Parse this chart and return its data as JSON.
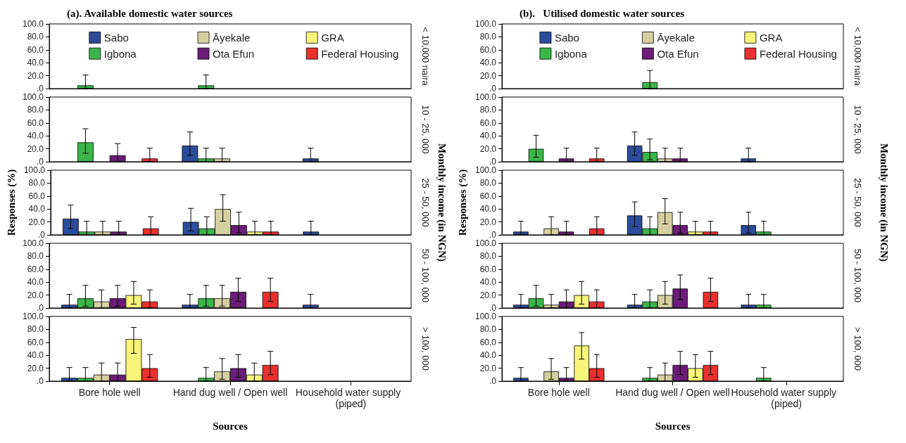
{
  "chart_data": [
    {
      "type": "bar",
      "title": "(a). Available domestic water sources",
      "legend": "top",
      "tick_labels": "y",
      "y2label": "< 10,000 naira",
      "categories": [
        "Bore hole well",
        "Hand dug well / Open well",
        "Household water supply  (piped)"
      ],
      "ylim": [
        0,
        100
      ],
      "yticks": [
        {
          "value": 0,
          "label": ".0"
        },
        {
          "value": 20,
          "label": "20.0"
        },
        {
          "value": 40,
          "label": "40.0"
        },
        {
          "value": 60,
          "label": "60.0"
        },
        {
          "value": 80,
          "label": "80.0"
        },
        {
          "value": 100,
          "label": "100.0"
        }
      ],
      "series": [
        {
          "name": "Sabo",
          "color": "#2b4c9b",
          "values": [
            null,
            null,
            null
          ],
          "errors": [
            null,
            null,
            null
          ]
        },
        {
          "name": "Igbona",
          "color": "#3bb54a",
          "values": [
            5,
            5,
            null
          ],
          "errors": [
            [
              0,
              21
            ],
            [
              0,
              21
            ],
            null
          ]
        },
        {
          "name": "Āyekale",
          "color": "#d6cfa0",
          "values": [
            null,
            null,
            null
          ],
          "errors": [
            null,
            null,
            null
          ]
        },
        {
          "name": "Ota Efun",
          "color": "#6b1d77",
          "values": [
            null,
            null,
            null
          ],
          "errors": [
            null,
            null,
            null
          ]
        },
        {
          "name": "GRA",
          "color": "#f8f47a",
          "values": [
            null,
            null,
            null
          ],
          "errors": [
            null,
            null,
            null
          ]
        },
        {
          "name": "Federal Housing",
          "color": "#e8302e",
          "values": [
            null,
            null,
            null
          ],
          "errors": [
            null,
            null,
            null
          ]
        }
      ]
    },
    {
      "type": "bar",
      "tick_labels": "y",
      "y2label": "10 - 25, 000",
      "categories": [
        "Bore hole well",
        "Hand dug well / Open well",
        "Household water supply  (piped)"
      ],
      "ylim": [
        0,
        100
      ],
      "yticks": [
        {
          "value": 0,
          "label": ".0"
        },
        {
          "value": 20,
          "label": "20.0"
        },
        {
          "value": 40,
          "label": "40.0"
        },
        {
          "value": 60,
          "label": "60.0"
        },
        {
          "value": 80,
          "label": "80.0"
        },
        {
          "value": 100,
          "label": "100.0"
        }
      ],
      "series": [
        {
          "color": "#2b4c9b",
          "values": [
            null,
            25,
            5
          ],
          "errors": [
            null,
            [
              10,
              46
            ],
            [
              0,
              21
            ]
          ]
        },
        {
          "color": "#3bb54a",
          "values": [
            30,
            5,
            null
          ],
          "errors": [
            [
              13,
              51
            ],
            [
              0,
              21
            ],
            null
          ]
        },
        {
          "color": "#d6cfa0",
          "values": [
            null,
            5,
            null
          ],
          "errors": [
            null,
            [
              0,
              21
            ],
            null
          ]
        },
        {
          "color": "#6b1d77",
          "values": [
            10,
            null,
            null
          ],
          "errors": [
            [
              0,
              28
            ],
            null,
            null
          ]
        },
        {
          "color": "#f8f47a",
          "values": [
            null,
            null,
            null
          ],
          "errors": [
            null,
            null,
            null
          ]
        },
        {
          "color": "#e8302e",
          "values": [
            5,
            null,
            null
          ],
          "errors": [
            [
              0,
              21
            ],
            null,
            null
          ]
        }
      ]
    },
    {
      "type": "bar",
      "tick_labels": "y",
      "ylabel": "Responses (%)",
      "annotations": [
        "Monthly income (in NGN)"
      ],
      "y2label": "25 - 50, 000",
      "categories": [
        "Bore hole well",
        "Hand dug well / Open well",
        "Household water supply  (piped)"
      ],
      "ylim": [
        0,
        100
      ],
      "yticks": [
        {
          "value": 0,
          "label": ".0"
        },
        {
          "value": 20,
          "label": "20.0"
        },
        {
          "value": 40,
          "label": "40.0"
        },
        {
          "value": 60,
          "label": "60.0"
        },
        {
          "value": 80,
          "label": "80.0"
        },
        {
          "value": 100,
          "label": "100.0"
        }
      ],
      "series": [
        {
          "color": "#2b4c9b",
          "values": [
            25,
            20,
            5
          ],
          "errors": [
            [
              10,
              46
            ],
            [
              6,
              41
            ],
            [
              0,
              21
            ]
          ]
        },
        {
          "color": "#3bb54a",
          "values": [
            5,
            10,
            null
          ],
          "errors": [
            [
              0,
              21
            ],
            [
              0,
              28
            ],
            null
          ]
        },
        {
          "color": "#d6cfa0",
          "values": [
            5,
            40,
            null
          ],
          "errors": [
            [
              0,
              21
            ],
            [
              21,
              62
            ],
            null
          ]
        },
        {
          "color": "#6b1d77",
          "values": [
            5,
            15,
            null
          ],
          "errors": [
            [
              0,
              21
            ],
            [
              3,
              35
            ],
            null
          ]
        },
        {
          "color": "#f8f47a",
          "values": [
            null,
            5,
            null
          ],
          "errors": [
            null,
            [
              0,
              21
            ],
            null
          ]
        },
        {
          "color": "#e8302e",
          "values": [
            10,
            5,
            null
          ],
          "errors": [
            [
              0,
              28
            ],
            [
              0,
              21
            ],
            null
          ]
        }
      ]
    },
    {
      "type": "bar",
      "tick_labels": "y",
      "y2label": "50 - 100, 000",
      "categories": [
        "Bore hole well",
        "Hand dug well / Open well",
        "Household water supply  (piped)"
      ],
      "ylim": [
        0,
        100
      ],
      "yticks": [
        {
          "value": 0,
          "label": ".0"
        },
        {
          "value": 20,
          "label": "20.0"
        },
        {
          "value": 40,
          "label": "40.0"
        },
        {
          "value": 60,
          "label": "60.0"
        },
        {
          "value": 80,
          "label": "80.0"
        },
        {
          "value": 100,
          "label": "100.0"
        }
      ],
      "series": [
        {
          "color": "#2b4c9b",
          "values": [
            5,
            5,
            5
          ],
          "errors": [
            [
              0,
              21
            ],
            [
              0,
              21
            ],
            [
              0,
              21
            ]
          ]
        },
        {
          "color": "#3bb54a",
          "values": [
            15,
            15,
            null
          ],
          "errors": [
            [
              3,
              35
            ],
            [
              3,
              35
            ],
            null
          ]
        },
        {
          "color": "#d6cfa0",
          "values": [
            10,
            15,
            null
          ],
          "errors": [
            [
              0,
              28
            ],
            [
              3,
              35
            ],
            null
          ]
        },
        {
          "color": "#6b1d77",
          "values": [
            15,
            25,
            null
          ],
          "errors": [
            [
              3,
              35
            ],
            [
              10,
              46
            ],
            null
          ]
        },
        {
          "color": "#f8f47a",
          "values": [
            20,
            null,
            null
          ],
          "errors": [
            [
              6,
              41
            ],
            null,
            null
          ]
        },
        {
          "color": "#e8302e",
          "values": [
            10,
            25,
            null
          ],
          "errors": [
            [
              0,
              28
            ],
            [
              10,
              46
            ],
            null
          ]
        }
      ]
    },
    {
      "type": "bar",
      "xlabel": "Sources",
      "y2label": "> 100, 000",
      "categories": [
        "Bore hole well",
        "Hand dug well / Open well",
        "Household water supply  (piped)"
      ],
      "ylim": [
        0,
        100
      ],
      "yticks": [
        {
          "value": 0,
          "label": ".0"
        },
        {
          "value": 20,
          "label": "20.0"
        },
        {
          "value": 40,
          "label": "40.0"
        },
        {
          "value": 60,
          "label": "60.0"
        },
        {
          "value": 80,
          "label": "80.0"
        },
        {
          "value": 100,
          "label": "100.0"
        }
      ],
      "series": [
        {
          "color": "#2b4c9b",
          "values": [
            5,
            null,
            null
          ],
          "errors": [
            [
              0,
              21
            ],
            null,
            null
          ]
        },
        {
          "color": "#3bb54a",
          "values": [
            5,
            5,
            null
          ],
          "errors": [
            [
              0,
              21
            ],
            [
              0,
              21
            ],
            null
          ]
        },
        {
          "color": "#d6cfa0",
          "values": [
            10,
            15,
            null
          ],
          "errors": [
            [
              0,
              28
            ],
            [
              3,
              35
            ],
            null
          ]
        },
        {
          "color": "#6b1d77",
          "values": [
            10,
            20,
            null
          ],
          "errors": [
            [
              0,
              28
            ],
            [
              6,
              41
            ],
            null
          ]
        },
        {
          "color": "#f8f47a",
          "values": [
            65,
            10,
            null
          ],
          "errors": [
            [
              43,
              83
            ],
            [
              0,
              28
            ],
            null
          ]
        },
        {
          "color": "#e8302e",
          "values": [
            20,
            25,
            null
          ],
          "errors": [
            [
              6,
              41
            ],
            [
              10,
              46
            ],
            null
          ]
        }
      ]
    },
    {
      "type": "bar",
      "title": "(b).   Utilised domestic water sources",
      "legend": "top",
      "tick_labels": "y",
      "y2label": "< 10,000 naira",
      "categories": [
        "Bore hole well",
        "Hand dug well / Open well",
        "Household water supply  (piped)"
      ],
      "ylim": [
        0,
        100
      ],
      "yticks": [
        {
          "value": 0,
          "label": ".0"
        },
        {
          "value": 20,
          "label": "20.0"
        },
        {
          "value": 40,
          "label": "40.0"
        },
        {
          "value": 60,
          "label": "60.0"
        },
        {
          "value": 80,
          "label": "80.0"
        },
        {
          "value": 100,
          "label": "100.0"
        }
      ],
      "series": [
        {
          "name": "Sabo",
          "color": "#2b4c9b",
          "values": [
            null,
            null,
            null
          ],
          "errors": [
            null,
            null,
            null
          ]
        },
        {
          "name": "Igbona",
          "color": "#3bb54a",
          "values": [
            null,
            10,
            null
          ],
          "errors": [
            null,
            [
              0,
              28
            ],
            null
          ]
        },
        {
          "name": "Āyekale",
          "color": "#d6cfa0",
          "values": [
            null,
            null,
            null
          ],
          "errors": [
            null,
            null,
            null
          ]
        },
        {
          "name": "Ota Efun",
          "color": "#6b1d77",
          "values": [
            null,
            null,
            null
          ],
          "errors": [
            null,
            null,
            null
          ]
        },
        {
          "name": "GRA",
          "color": "#f8f47a",
          "values": [
            null,
            null,
            null
          ],
          "errors": [
            null,
            null,
            null
          ]
        },
        {
          "name": "Federal Housing",
          "color": "#e8302e",
          "values": [
            null,
            null,
            null
          ],
          "errors": [
            null,
            null,
            null
          ]
        }
      ]
    },
    {
      "type": "bar",
      "tick_labels": "y",
      "y2label": "10 - 25, 000",
      "categories": [
        "Bore hole well",
        "Hand dug well / Open well",
        "Household water supply  (piped)"
      ],
      "ylim": [
        0,
        100
      ],
      "yticks": [
        {
          "value": 0,
          "label": ".0"
        },
        {
          "value": 20,
          "label": "20.0"
        },
        {
          "value": 40,
          "label": "40.0"
        },
        {
          "value": 60,
          "label": "60.0"
        },
        {
          "value": 80,
          "label": "80.0"
        },
        {
          "value": 100,
          "label": "100.0"
        }
      ],
      "series": [
        {
          "color": "#2b4c9b",
          "values": [
            null,
            25,
            5
          ],
          "errors": [
            null,
            [
              10,
              46
            ],
            [
              0,
              21
            ]
          ]
        },
        {
          "color": "#3bb54a",
          "values": [
            20,
            15,
            null
          ],
          "errors": [
            [
              7,
              41
            ],
            [
              3,
              35
            ],
            null
          ]
        },
        {
          "color": "#d6cfa0",
          "values": [
            null,
            5,
            null
          ],
          "errors": [
            null,
            [
              0,
              21
            ],
            null
          ]
        },
        {
          "color": "#6b1d77",
          "values": [
            5,
            5,
            null
          ],
          "errors": [
            [
              0,
              21
            ],
            [
              0,
              21
            ],
            null
          ]
        },
        {
          "color": "#f8f47a",
          "values": [
            null,
            null,
            null
          ],
          "errors": [
            null,
            null,
            null
          ]
        },
        {
          "color": "#e8302e",
          "values": [
            5,
            null,
            null
          ],
          "errors": [
            [
              0,
              21
            ],
            null,
            null
          ]
        }
      ]
    },
    {
      "type": "bar",
      "tick_labels": "y",
      "ylabel": "Responses (%)",
      "annotations": [
        "Monthly income (in NGN)"
      ],
      "y2label": "25 - 50, 000",
      "categories": [
        "Bore hole well",
        "Hand dug well / Open well",
        "Household water supply  (piped)"
      ],
      "ylim": [
        0,
        100
      ],
      "yticks": [
        {
          "value": 0,
          "label": ".0"
        },
        {
          "value": 20,
          "label": "20.0"
        },
        {
          "value": 40,
          "label": "40.0"
        },
        {
          "value": 60,
          "label": "60.0"
        },
        {
          "value": 80,
          "label": "80.0"
        },
        {
          "value": 100,
          "label": "100.0"
        }
      ],
      "series": [
        {
          "color": "#2b4c9b",
          "values": [
            5,
            30,
            15
          ],
          "errors": [
            [
              0,
              21
            ],
            [
              13,
              51
            ],
            [
              3,
              35
            ]
          ]
        },
        {
          "color": "#3bb54a",
          "values": [
            null,
            10,
            5
          ],
          "errors": [
            null,
            [
              0,
              28
            ],
            [
              0,
              21
            ]
          ]
        },
        {
          "color": "#d6cfa0",
          "values": [
            10,
            35,
            null
          ],
          "errors": [
            [
              0,
              28
            ],
            [
              17,
              56
            ],
            null
          ]
        },
        {
          "color": "#6b1d77",
          "values": [
            5,
            15,
            null
          ],
          "errors": [
            [
              0,
              21
            ],
            [
              3,
              35
            ],
            null
          ]
        },
        {
          "color": "#f8f47a",
          "values": [
            null,
            5,
            null
          ],
          "errors": [
            null,
            [
              0,
              21
            ],
            null
          ]
        },
        {
          "color": "#e8302e",
          "values": [
            10,
            5,
            null
          ],
          "errors": [
            [
              0,
              28
            ],
            [
              0,
              21
            ],
            null
          ]
        }
      ]
    },
    {
      "type": "bar",
      "tick_labels": "y",
      "y2label": "50 - 100, 000",
      "categories": [
        "Bore hole well",
        "Hand dug well / Open well",
        "Household water supply  (piped)"
      ],
      "ylim": [
        0,
        100
      ],
      "yticks": [
        {
          "value": 0,
          "label": ".0"
        },
        {
          "value": 20,
          "label": "20.0"
        },
        {
          "value": 40,
          "label": "40.0"
        },
        {
          "value": 60,
          "label": "60.0"
        },
        {
          "value": 80,
          "label": "80.0"
        },
        {
          "value": 100,
          "label": "100.0"
        }
      ],
      "series": [
        {
          "color": "#2b4c9b",
          "values": [
            5,
            5,
            5
          ],
          "errors": [
            [
              0,
              21
            ],
            [
              0,
              21
            ],
            [
              0,
              21
            ]
          ]
        },
        {
          "color": "#3bb54a",
          "values": [
            15,
            10,
            5
          ],
          "errors": [
            [
              3,
              35
            ],
            [
              0,
              28
            ],
            [
              0,
              21
            ]
          ]
        },
        {
          "color": "#d6cfa0",
          "values": [
            5,
            20,
            null
          ],
          "errors": [
            [
              0,
              21
            ],
            [
              6,
              41
            ],
            null
          ]
        },
        {
          "color": "#6b1d77",
          "values": [
            10,
            30,
            null
          ],
          "errors": [
            [
              0,
              28
            ],
            [
              13,
              51
            ],
            null
          ]
        },
        {
          "color": "#f8f47a",
          "values": [
            20,
            null,
            null
          ],
          "errors": [
            [
              6,
              41
            ],
            null,
            null
          ]
        },
        {
          "color": "#e8302e",
          "values": [
            10,
            25,
            null
          ],
          "errors": [
            [
              0,
              28
            ],
            [
              10,
              46
            ],
            null
          ]
        }
      ]
    },
    {
      "type": "bar",
      "xlabel": "Sources",
      "y2label": "> 100, 000",
      "categories": [
        "Bore hole well",
        "Hand dug well / Open well",
        "Household water supply  (piped)"
      ],
      "ylim": [
        0,
        100
      ],
      "yticks": [
        {
          "value": 0,
          "label": ".0"
        },
        {
          "value": 20,
          "label": "20.0"
        },
        {
          "value": 40,
          "label": "40.0"
        },
        {
          "value": 60,
          "label": "60.0"
        },
        {
          "value": 80,
          "label": "80.0"
        },
        {
          "value": 100,
          "label": "100.0"
        }
      ],
      "series": [
        {
          "color": "#2b4c9b",
          "values": [
            5,
            null,
            null
          ],
          "errors": [
            [
              0,
              21
            ],
            null,
            null
          ]
        },
        {
          "color": "#3bb54a",
          "values": [
            null,
            5,
            5
          ],
          "errors": [
            null,
            [
              0,
              21
            ],
            [
              0,
              21
            ]
          ]
        },
        {
          "color": "#d6cfa0",
          "values": [
            15,
            10,
            null
          ],
          "errors": [
            [
              3,
              35
            ],
            [
              0,
              28
            ],
            null
          ]
        },
        {
          "color": "#6b1d77",
          "values": [
            5,
            25,
            null
          ],
          "errors": [
            [
              0,
              21
            ],
            [
              10,
              46
            ],
            null
          ]
        },
        {
          "color": "#f8f47a",
          "values": [
            55,
            20,
            null
          ],
          "errors": [
            [
              34,
              75
            ],
            [
              6,
              41
            ],
            null
          ]
        },
        {
          "color": "#e8302e",
          "values": [
            20,
            25,
            null
          ],
          "errors": [
            [
              6,
              41
            ],
            [
              10,
              46
            ],
            null
          ]
        }
      ]
    }
  ]
}
